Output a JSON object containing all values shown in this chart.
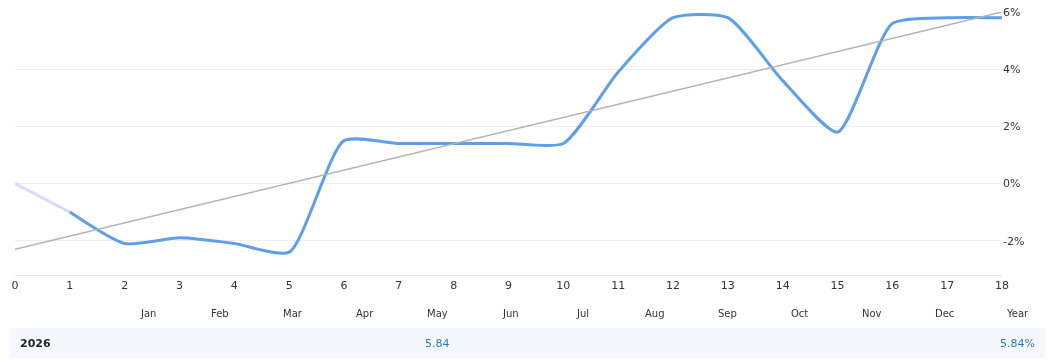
{
  "chart_data": {
    "type": "line",
    "series": [
      {
        "color": "#d6ddf7",
        "x": [
          0,
          1
        ],
        "values": [
          0,
          -1.0
        ]
      },
      {
        "color": "#5f9ee8",
        "x": [
          1,
          2,
          3,
          4,
          5,
          6,
          7,
          8,
          9,
          10,
          11,
          12,
          13,
          14,
          15,
          16,
          17,
          18
        ],
        "values": [
          -1.0,
          -2.1,
          -1.9,
          -2.1,
          -2.4,
          1.5,
          1.4,
          1.4,
          1.4,
          1.4,
          3.9,
          5.8,
          5.8,
          3.6,
          1.8,
          5.6,
          5.8,
          5.8
        ]
      },
      {
        "type": "line",
        "color": "#b3b3b3",
        "x": [
          0,
          18
        ],
        "values": [
          -2.3,
          6.0
        ]
      }
    ],
    "xlim": [
      0,
      18
    ],
    "xticks": [
      0,
      1,
      2,
      3,
      4,
      5,
      6,
      7,
      8,
      9,
      10,
      11,
      12,
      13,
      14,
      15,
      16,
      17,
      18
    ],
    "ylim": [
      -3.2,
      6
    ],
    "yticks": [
      {
        "value": -2,
        "label": "-2%"
      },
      {
        "value": 0,
        "label": "0%"
      },
      {
        "value": 2,
        "label": "2%"
      },
      {
        "value": 4,
        "label": "4%"
      },
      {
        "value": 6,
        "label": "6%"
      }
    ],
    "grid": "y",
    "marker": "none",
    "line_style": "solid",
    "annotations": [
      "Jan",
      "Feb",
      "Mar",
      "Apr",
      "May",
      "Jun",
      "Jul",
      "Aug",
      "Sep",
      "Oct",
      "Nov",
      "Dec",
      "Year",
      "2026",
      "5.84",
      "5.84%"
    ]
  }
}
